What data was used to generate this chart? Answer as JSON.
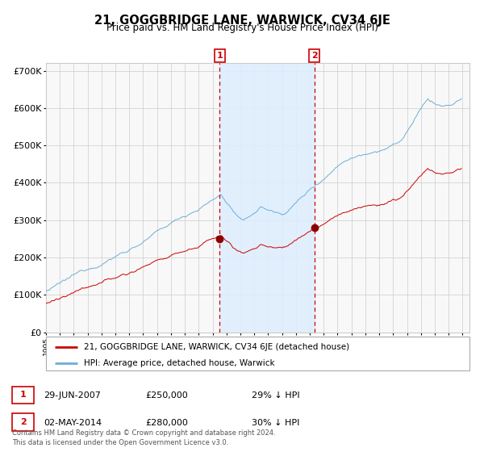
{
  "title": "21, GOGGBRIDGE LANE, WARWICK, CV34 6JE",
  "subtitle": "Price paid vs. HM Land Registry's House Price Index (HPI)",
  "hpi_color": "#6baed6",
  "price_color": "#cc0000",
  "marker_color": "#8b0000",
  "background_color": "#ffffff",
  "plot_bg_color": "#f8f8f8",
  "grid_color": "#cccccc",
  "shade_color": "#ddeeff",
  "ylim": [
    0,
    720000
  ],
  "yticks": [
    0,
    100000,
    200000,
    300000,
    400000,
    500000,
    600000,
    700000
  ],
  "ytick_labels": [
    "£0",
    "£100K",
    "£200K",
    "£300K",
    "£400K",
    "£500K",
    "£600K",
    "£700K"
  ],
  "year_start": 1995,
  "year_end": 2025,
  "sale1_year": 2007.5,
  "sale1_price": 250000,
  "sale1_label": "1",
  "sale1_date": "29-JUN-2007",
  "sale1_hpi_pct": "29%",
  "sale2_year": 2014.33,
  "sale2_price": 280000,
  "sale2_label": "2",
  "sale2_date": "02-MAY-2014",
  "sale2_hpi_pct": "30%",
  "legend_price_label": "21, GOGGBRIDGE LANE, WARWICK, CV34 6JE (detached house)",
  "legend_hpi_label": "HPI: Average price, detached house, Warwick",
  "footer": "Contains HM Land Registry data © Crown copyright and database right 2024.\nThis data is licensed under the Open Government Licence v3.0."
}
